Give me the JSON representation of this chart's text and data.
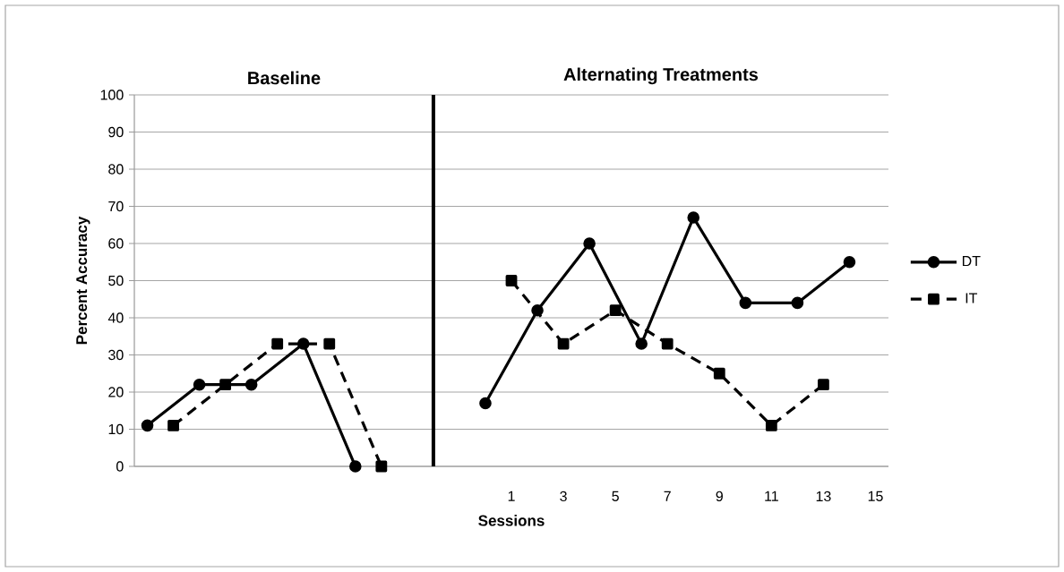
{
  "chart_data": {
    "type": "line",
    "annotations": [
      "Baseline",
      "Alternating Treatments"
    ],
    "xlabel": "Sessions",
    "ylabel": "Percent Accuracy",
    "categories": [
      null,
      null,
      null,
      null,
      null,
      null,
      null,
      null,
      null,
      null,
      null,
      null,
      null,
      null,
      "1",
      null,
      "3",
      null,
      "5",
      null,
      "7",
      null,
      "9",
      null,
      "11",
      null,
      "13",
      null,
      "15"
    ],
    "series": [
      {
        "color": "#000000",
        "line_style": "solid",
        "marker": "circle",
        "values": [
          11,
          null,
          22,
          null,
          22,
          null,
          33,
          null,
          0,
          null,
          null,
          null,
          null,
          null,
          null,
          null,
          null,
          null,
          null,
          null,
          null,
          null,
          null,
          null,
          null,
          null,
          null,
          null,
          null
        ]
      },
      {
        "color": "#000000",
        "line_style": "dashed",
        "marker": "square",
        "values": [
          null,
          11,
          null,
          22,
          null,
          33,
          null,
          33,
          null,
          0,
          null,
          null,
          null,
          null,
          null,
          null,
          null,
          null,
          null,
          null,
          null,
          null,
          null,
          null,
          null,
          null,
          null,
          null,
          null
        ]
      },
      {
        "name": "DT",
        "color": "#000000",
        "line_style": "solid",
        "marker": "circle",
        "values": [
          null,
          null,
          null,
          null,
          null,
          null,
          null,
          null,
          null,
          null,
          null,
          null,
          null,
          17,
          null,
          42,
          null,
          60,
          null,
          33,
          null,
          67,
          null,
          44,
          null,
          44,
          null,
          55,
          null
        ]
      },
      {
        "name": "IT",
        "color": "#000000",
        "line_style": "dashed",
        "marker": "square",
        "values": [
          null,
          null,
          null,
          null,
          null,
          null,
          null,
          null,
          null,
          null,
          null,
          null,
          null,
          null,
          50,
          null,
          33,
          null,
          42,
          null,
          33,
          null,
          25,
          null,
          11,
          null,
          22,
          null,
          null
        ]
      }
    ],
    "ylim": [
      0,
      100
    ],
    "yticks": [
      0,
      10,
      20,
      30,
      40,
      50,
      60,
      70,
      80,
      90,
      100
    ],
    "grid": "y",
    "legend": "right"
  }
}
